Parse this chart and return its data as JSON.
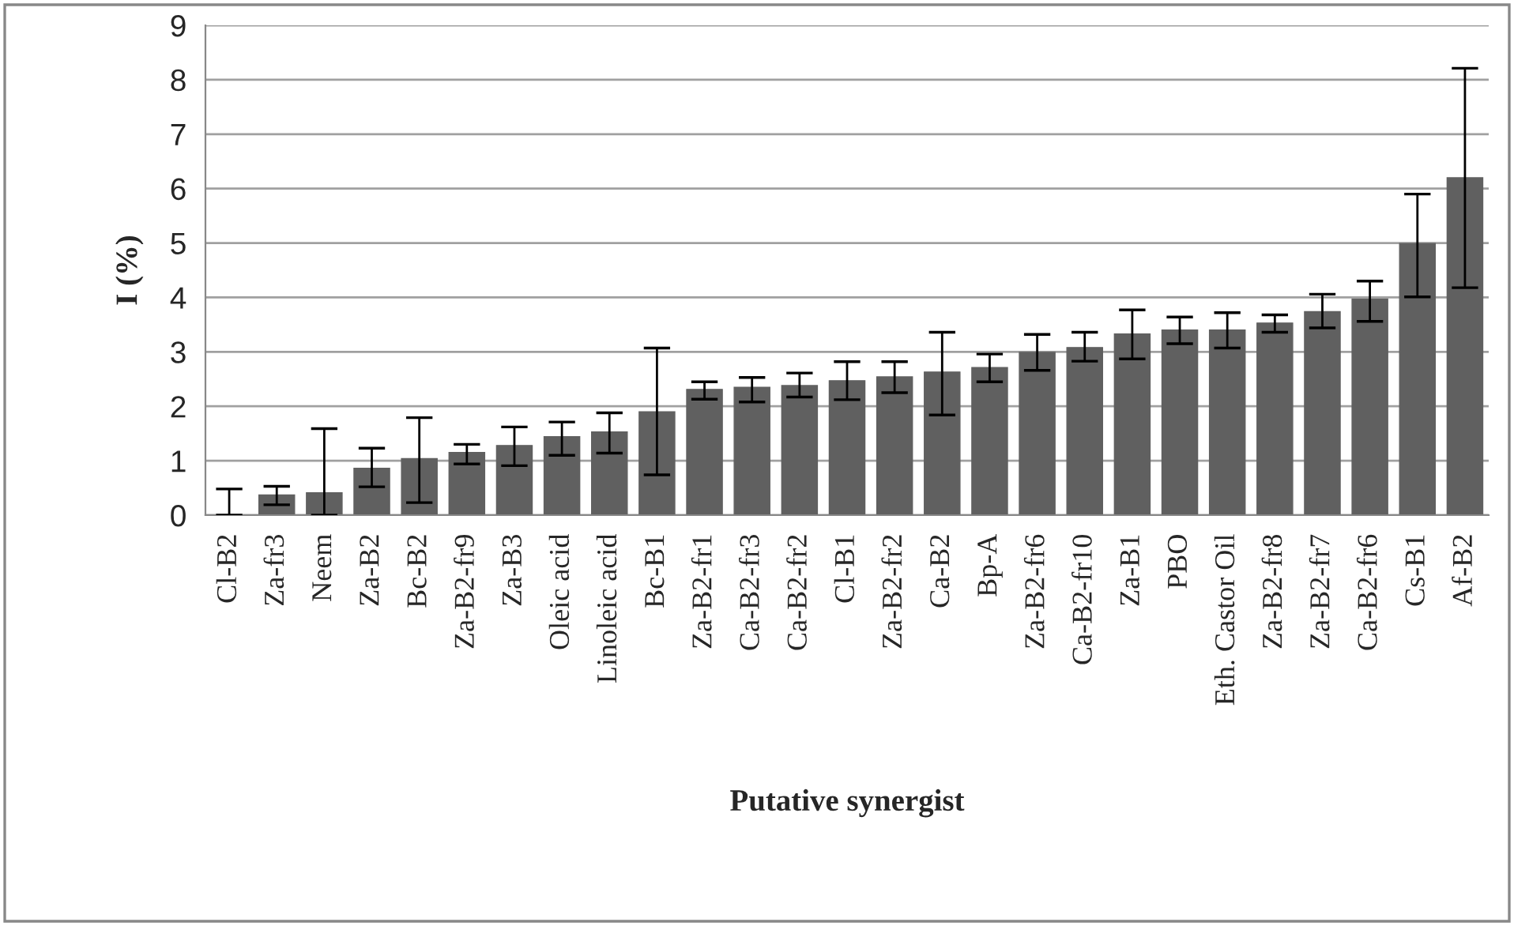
{
  "chart_data": {
    "type": "bar",
    "categories": [
      "Cl-B2",
      "Za-fr3",
      "Neem",
      "Za-B2",
      "Bc-B2",
      "Za-B2-fr9",
      "Za-B3",
      "Oleic acid",
      "Linoleic acid",
      "Bc-B1",
      "Za-B2-fr1",
      "Ca-B2-fr3",
      "Ca-B2-fr2",
      "Cl-B1",
      "Za-B2-fr2",
      "Ca-B2",
      "Bp-A",
      "Za-B2-fr6",
      "Ca-B2-fr10",
      "Za-B1",
      "PBO",
      "Eth. Castor Oil",
      "Za-B2-fr8",
      "Za-B2-fr7",
      "Ca-B2-fr6",
      "Cs-B1",
      "Af-B2"
    ],
    "values": [
      0,
      0.37,
      0.41,
      0.86,
      1.04,
      1.15,
      1.28,
      1.44,
      1.53,
      1.9,
      2.31,
      2.35,
      2.38,
      2.47,
      2.54,
      2.63,
      2.71,
      2.99,
      3.08,
      3.33,
      3.4,
      3.4,
      3.53,
      3.74,
      3.97,
      4.99,
      6.2
    ],
    "errors": [
      [
        0,
        0.48
      ],
      [
        0.19,
        0.53
      ],
      [
        0,
        1.59
      ],
      [
        0.52,
        1.23
      ],
      [
        0.23,
        1.79
      ],
      [
        0.94,
        1.3
      ],
      [
        0.91,
        1.62
      ],
      [
        1.1,
        1.71
      ],
      [
        1.14,
        1.88
      ],
      [
        0.74,
        3.07
      ],
      [
        2.13,
        2.45
      ],
      [
        2.08,
        2.53
      ],
      [
        2.17,
        2.61
      ],
      [
        2.12,
        2.82
      ],
      [
        2.25,
        2.82
      ],
      [
        1.84,
        3.36
      ],
      [
        2.45,
        2.96
      ],
      [
        2.66,
        3.32
      ],
      [
        2.83,
        3.36
      ],
      [
        2.87,
        3.77
      ],
      [
        3.15,
        3.64
      ],
      [
        3.07,
        3.72
      ],
      [
        3.36,
        3.68
      ],
      [
        3.44,
        4.06
      ],
      [
        3.56,
        4.3
      ],
      [
        4.01,
        5.9
      ],
      [
        4.18,
        8.21
      ]
    ],
    "color": "#606060",
    "xlabel": "Putative synergist",
    "ylabel": "I (%)",
    "ylim": [
      0,
      9
    ],
    "yticks": [
      0,
      1,
      2,
      3,
      4,
      5,
      6,
      7,
      8,
      9
    ],
    "grid": "y",
    "legend": false
  }
}
